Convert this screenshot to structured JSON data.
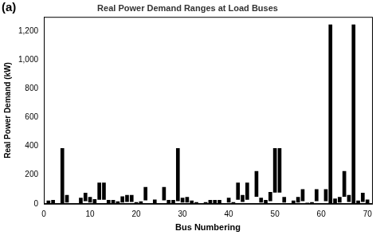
{
  "chart_data": {
    "type": "bar",
    "title": "Real Power Demand Ranges at Load Buses",
    "annotation": "(a)",
    "x_label": "Bus Numbering",
    "y_label": "Real Power Demand (kW)",
    "x": [
      1,
      2,
      4,
      5,
      8,
      9,
      10,
      11,
      12,
      13,
      14,
      15,
      16,
      17,
      18,
      19,
      20,
      21,
      22,
      24,
      26,
      27,
      28,
      29,
      30,
      31,
      32,
      33,
      35,
      36,
      37,
      38,
      40,
      41,
      42,
      43,
      44,
      46,
      47,
      48,
      49,
      50,
      51,
      52,
      54,
      55,
      56,
      57,
      58,
      59,
      61,
      62,
      63,
      64,
      65,
      66,
      67,
      68,
      69,
      70
    ],
    "values": [
      [
        5,
        20
      ],
      [
        5,
        25
      ],
      [
        0,
        385
      ],
      [
        10,
        60
      ],
      [
        5,
        40
      ],
      [
        20,
        75
      ],
      [
        10,
        45
      ],
      [
        5,
        30
      ],
      [
        30,
        145
      ],
      [
        30,
        145
      ],
      [
        5,
        25
      ],
      [
        5,
        25
      ],
      [
        2,
        15
      ],
      [
        10,
        50
      ],
      [
        15,
        60
      ],
      [
        15,
        60
      ],
      [
        2,
        10
      ],
      [
        2,
        15
      ],
      [
        25,
        115
      ],
      [
        5,
        28
      ],
      [
        25,
        115
      ],
      [
        5,
        25
      ],
      [
        5,
        25
      ],
      [
        20,
        385
      ],
      [
        10,
        40
      ],
      [
        10,
        45
      ],
      [
        2,
        20
      ],
      [
        2,
        10
      ],
      [
        2,
        10
      ],
      [
        5,
        25
      ],
      [
        5,
        25
      ],
      [
        5,
        25
      ],
      [
        10,
        40
      ],
      [
        2,
        10
      ],
      [
        30,
        145
      ],
      [
        15,
        60
      ],
      [
        30,
        145
      ],
      [
        50,
        225
      ],
      [
        10,
        40
      ],
      [
        5,
        25
      ],
      [
        20,
        80
      ],
      [
        80,
        385
      ],
      [
        80,
        385
      ],
      [
        10,
        45
      ],
      [
        2,
        20
      ],
      [
        10,
        45
      ],
      [
        20,
        100
      ],
      [
        1,
        5
      ],
      [
        2,
        10
      ],
      [
        20,
        100
      ],
      [
        20,
        100
      ],
      [
        0,
        1245
      ],
      [
        5,
        35
      ],
      [
        10,
        45
      ],
      [
        50,
        225
      ],
      [
        15,
        60
      ],
      [
        0,
        1245
      ],
      [
        5,
        20
      ],
      [
        15,
        75
      ],
      [
        5,
        28
      ]
    ],
    "color": "#000000",
    "xlim": [
      0,
      71
    ],
    "xticks": [
      0,
      10,
      20,
      30,
      40,
      50,
      60,
      70
    ],
    "ylim": [
      0,
      1300
    ],
    "yticks": [
      0,
      200,
      400,
      600,
      800,
      1000,
      1200
    ],
    "grid": false
  }
}
